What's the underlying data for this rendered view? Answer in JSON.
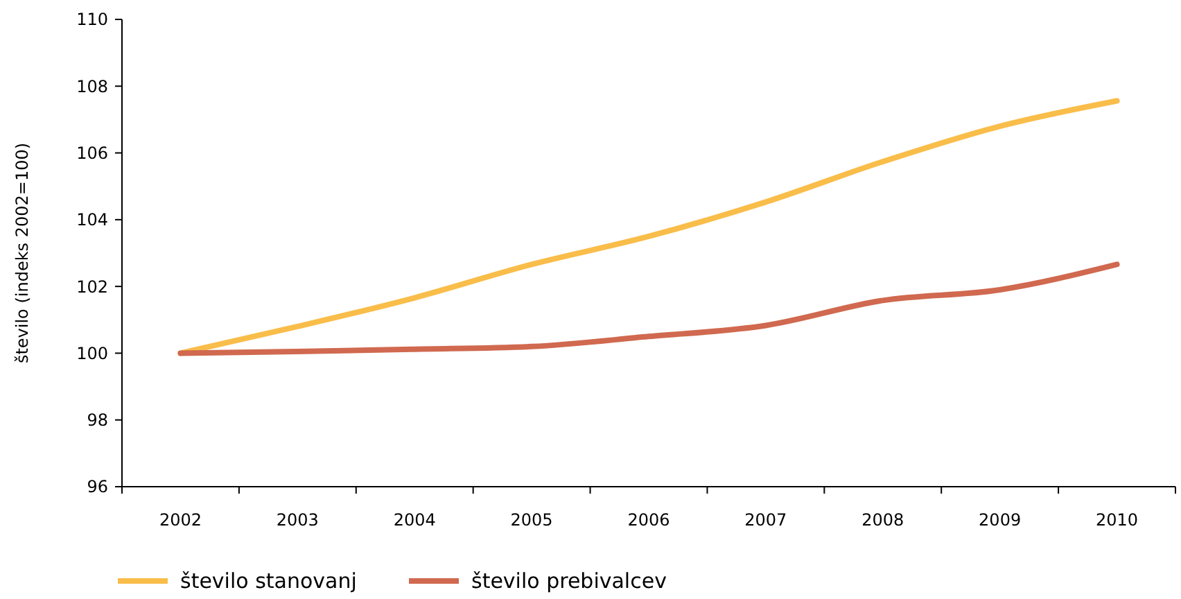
{
  "chart_data": {
    "type": "line",
    "ylabel": "število (indeks 2002=100)",
    "categories": [
      "2002",
      "2003",
      "2004",
      "2005",
      "2006",
      "2007",
      "2008",
      "2009",
      "2010"
    ],
    "series": [
      {
        "name": "število stanovanj",
        "color": "#f9bd4a",
        "values": [
          100,
          100.8,
          101.66,
          102.66,
          103.5,
          104.53,
          105.74,
          106.8,
          107.56
        ]
      },
      {
        "name": "število prebivalcev",
        "color": "#d0694f",
        "values": [
          100,
          100.05,
          100.12,
          100.2,
          100.5,
          100.83,
          101.58,
          101.9,
          102.66
        ]
      }
    ],
    "ylim": [
      96,
      110
    ],
    "yticks": [
      96,
      98,
      100,
      102,
      104,
      106,
      108,
      110
    ],
    "grid": false,
    "legend": "bottom left",
    "marker": "none",
    "line_style": "solid"
  }
}
